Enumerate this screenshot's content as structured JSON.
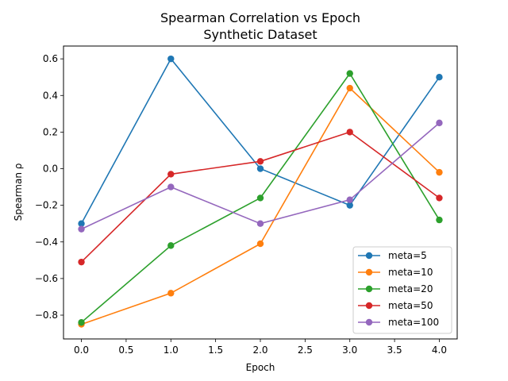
{
  "chart_data": {
    "type": "line",
    "title": "Spearman Correlation vs Epoch",
    "subtitle": "Synthetic Dataset",
    "xlabel": "Epoch",
    "ylabel": "Spearman ρ",
    "x": [
      0,
      1,
      2,
      3,
      4
    ],
    "xlim": [
      -0.2,
      4.2
    ],
    "ylim": [
      -0.93,
      0.67
    ],
    "xticks": [
      0.0,
      0.5,
      1.0,
      1.5,
      2.0,
      2.5,
      3.0,
      3.5,
      4.0
    ],
    "xtick_labels": [
      "0.0",
      "0.5",
      "1.0",
      "1.5",
      "2.0",
      "2.5",
      "3.0",
      "3.5",
      "4.0"
    ],
    "yticks": [
      -0.8,
      -0.6,
      -0.4,
      -0.2,
      0.0,
      0.2,
      0.4,
      0.6
    ],
    "ytick_labels": [
      "−0.8",
      "−0.6",
      "−0.4",
      "−0.2",
      "0.0",
      "0.2",
      "0.4",
      "0.6"
    ],
    "grid": false,
    "legend_position": "lower-right",
    "series": [
      {
        "name": "meta=5",
        "color": "#1f77b4",
        "values": [
          -0.3,
          0.6,
          0.0,
          -0.2,
          0.5
        ]
      },
      {
        "name": "meta=10",
        "color": "#ff7f0e",
        "values": [
          -0.85,
          -0.68,
          -0.41,
          0.44,
          -0.02
        ]
      },
      {
        "name": "meta=20",
        "color": "#2ca02c",
        "values": [
          -0.84,
          -0.42,
          -0.16,
          0.52,
          -0.28
        ]
      },
      {
        "name": "meta=50",
        "color": "#d62728",
        "values": [
          -0.51,
          -0.03,
          0.04,
          0.2,
          -0.16
        ]
      },
      {
        "name": "meta=100",
        "color": "#9467bd",
        "values": [
          -0.33,
          -0.1,
          -0.3,
          -0.17,
          0.25
        ]
      }
    ]
  }
}
